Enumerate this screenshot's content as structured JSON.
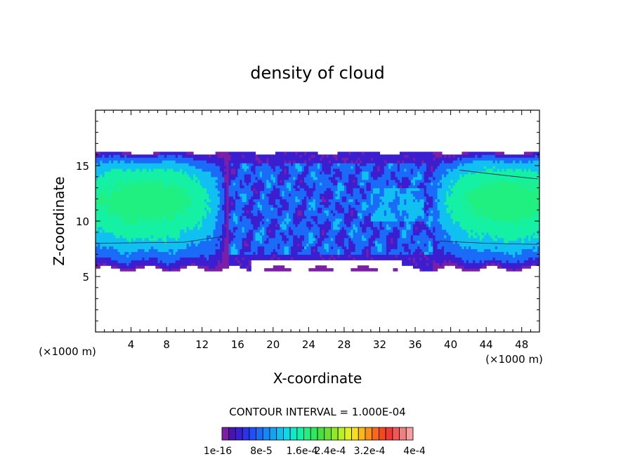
{
  "chart_data": {
    "type": "heatmap",
    "title": "density of cloud",
    "xlabel": "X-coordinate",
    "ylabel": "Z-coordinate",
    "x_unit": "(×1000 m)",
    "z_unit": "(×1000 m)",
    "xlim": [
      0,
      50
    ],
    "ylim": [
      0,
      20
    ],
    "x_ticks": [
      4,
      8,
      12,
      16,
      20,
      24,
      28,
      32,
      36,
      40,
      44,
      48
    ],
    "y_ticks": [
      5,
      10,
      15
    ],
    "contour_interval_text": "CONTOUR INTERVAL = 1.000E-04",
    "colorbar": {
      "labels": [
        "1e-16",
        "8e-5",
        "1.6e-4",
        "2.4e-4",
        "3.2e-4",
        "4e-4"
      ],
      "colors": [
        "#7c1fa6",
        "#4a12b0",
        "#3a1ed0",
        "#2a34e6",
        "#2050f4",
        "#1a6cf8",
        "#1488f8",
        "#10a4f4",
        "#10c0f0",
        "#10d8e8",
        "#10e8c8",
        "#14f0a4",
        "#20f080",
        "#30e85c",
        "#48e040",
        "#68e030",
        "#90e828",
        "#b8f028",
        "#e0f020",
        "#f8e018",
        "#f8b818",
        "#f89018",
        "#f86818",
        "#f04820",
        "#f03838",
        "#f05858",
        "#f08080",
        "#f4a0a0"
      ]
    },
    "field": {
      "description_levels": [
        {
          "level": 1,
          "color": "#7c1fa6"
        },
        {
          "level": 2,
          "color": "#3a1ed0"
        },
        {
          "level": 3,
          "color": "#1a6cf8"
        },
        {
          "level": 4,
          "color": "#10c0f0"
        },
        {
          "level": 5,
          "color": "#14f0a4"
        },
        {
          "level": 6,
          "color": "#20f080"
        }
      ]
    }
  }
}
